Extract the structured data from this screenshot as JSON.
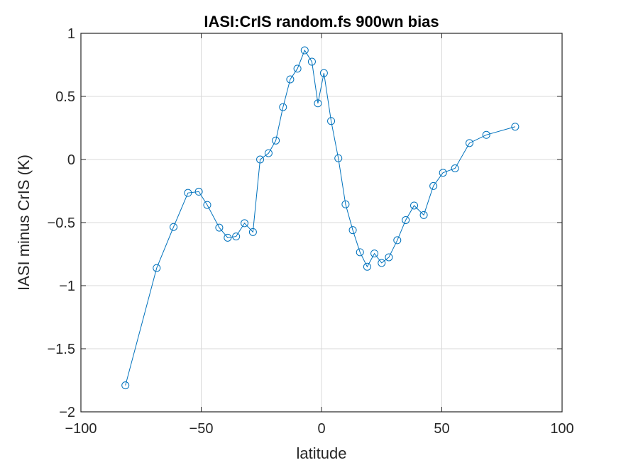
{
  "chart_data": {
    "type": "line",
    "title": "IASI:CrIS random.fs 900wn bias",
    "xlabel": "latitude",
    "ylabel": "IASI minus CrIS (K)",
    "xlim": [
      -100,
      100
    ],
    "ylim": [
      -2,
      1
    ],
    "xticks": [
      -100,
      -50,
      0,
      50,
      100
    ],
    "yticks": [
      -2,
      -1.5,
      -1,
      -0.5,
      0,
      0.5,
      1
    ],
    "xtick_labels": [
      "−100",
      "−50",
      "0",
      "50",
      "100"
    ],
    "ytick_labels": [
      "−2",
      "−1.5",
      "−1",
      "−0.5",
      "0",
      "0.5",
      "1"
    ],
    "grid": true,
    "marker": "circle",
    "series_color": "#0072BD",
    "series": [
      {
        "x": [
          -81.5,
          -68.5,
          -61.5,
          -55.5,
          -51,
          -47.5,
          -42.5,
          -39,
          -35.5,
          -32,
          -28.5,
          -25.5,
          -22,
          -19,
          -16,
          -13,
          -10,
          -7,
          -4,
          -1.5,
          1,
          4,
          7,
          10,
          13,
          16,
          19,
          22,
          25,
          28,
          31.5,
          35,
          38.5,
          42.5,
          46.5,
          50.5,
          55.5,
          61.5,
          68.5,
          80.5
        ],
        "y": [
          -1.79,
          -0.86,
          -0.535,
          -0.265,
          -0.255,
          -0.36,
          -0.54,
          -0.62,
          -0.61,
          -0.505,
          -0.575,
          0.0,
          0.05,
          0.15,
          0.415,
          0.635,
          0.72,
          0.865,
          0.775,
          0.445,
          0.685,
          0.305,
          0.01,
          -0.355,
          -0.56,
          -0.735,
          -0.85,
          -0.745,
          -0.82,
          -0.775,
          -0.64,
          -0.48,
          -0.365,
          -0.44,
          -0.21,
          -0.105,
          -0.07,
          0.13,
          0.195,
          0.26
        ]
      }
    ]
  }
}
